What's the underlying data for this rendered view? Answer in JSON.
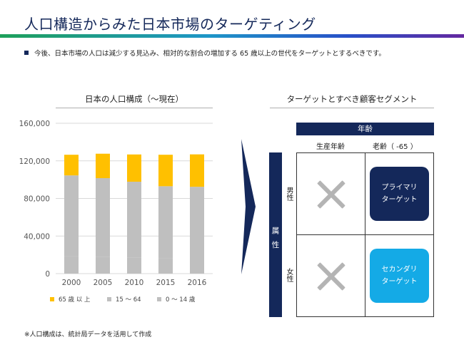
{
  "page": {
    "title": "人口構造からみた日本市場のターゲティング",
    "lead": "今後、日本市場の人口は減少する見込み、相対的な割合の増加する 65 歳以上の世代をターゲットとするべきです。",
    "footnote": "※人口構成は、統計局データを活用して作成"
  },
  "chart_data": {
    "type": "bar",
    "stacked": true,
    "title": "日本の人口構成（〜現在）",
    "categories": [
      "2000",
      "2005",
      "2010",
      "2015",
      "2016"
    ],
    "series": [
      {
        "name": "65 歳 以 上",
        "color": "#ffc000",
        "values": [
          22000,
          26000,
          29000,
          33500,
          34500
        ]
      },
      {
        "name": "15 〜 64",
        "color": "#bfbfbf",
        "values": [
          86000,
          84000,
          81000,
          77000,
          76500
        ]
      },
      {
        "name": "0 〜 14 歳",
        "color": "#bfbfbf",
        "values": [
          18500,
          17600,
          16800,
          16000,
          15900
        ]
      }
    ],
    "ylim": [
      0,
      160000
    ],
    "yticks": [
      0,
      40000,
      80000,
      120000,
      160000
    ],
    "ytick_labels": [
      "0",
      "40,000",
      "80,000",
      "120,000",
      "160,000"
    ],
    "grid": true,
    "legend_position": "bottom"
  },
  "segment": {
    "title": "ターゲットとすべき顧客セグメント",
    "age_header": "年齢",
    "col_working": "生産年齢",
    "col_senior": "老齢（ -65 ）",
    "attr_label_1": "属",
    "attr_label_2": "性",
    "row_male": "男性",
    "row_female": "女性",
    "primary_line1": "プライマリ",
    "primary_line2": "ターゲット",
    "secondary_line1": "セカンダリ",
    "secondary_line2": "ターゲット",
    "cross_icon": "cross-icon",
    "arrow_icon": "chevron-right-icon"
  }
}
